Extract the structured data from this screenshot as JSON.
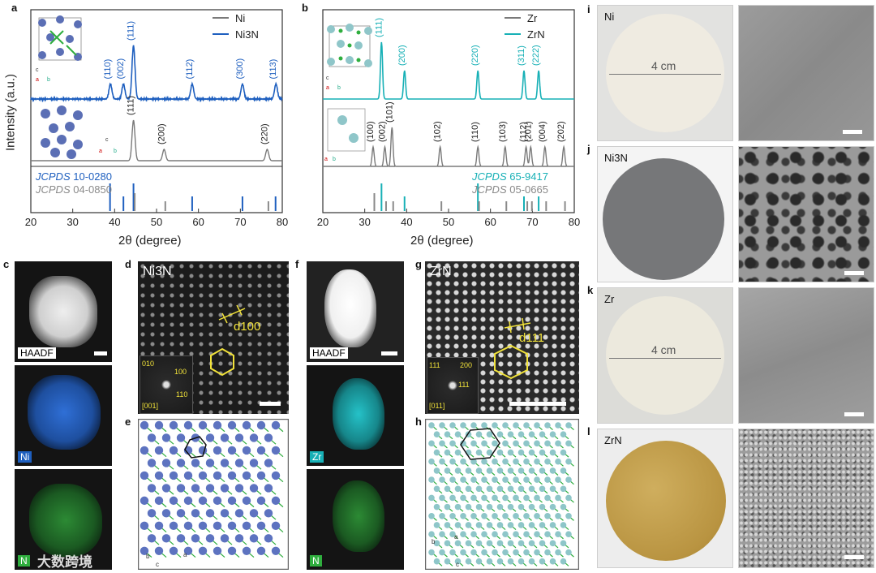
{
  "panels": {
    "a": "a",
    "b": "b",
    "c": "c",
    "d": "d",
    "e": "e",
    "f": "f",
    "g": "g",
    "h": "h",
    "i": "i",
    "j": "j",
    "k": "k",
    "l": "l"
  },
  "axis": {
    "ylabel": "Intensity (a.u.)",
    "xlabel": "2θ (degree)",
    "xticks": [
      "20",
      "30",
      "40",
      "50",
      "60",
      "70",
      "80"
    ]
  },
  "chart_data": [
    {
      "type": "line",
      "panel": "a",
      "xlabel": "2θ (degree)",
      "ylabel": "Intensity (a.u.)",
      "xlim": [
        20,
        80
      ],
      "legend": [
        "Ni",
        "Ni3N"
      ],
      "legend_placement": "top-right",
      "series": [
        {
          "name": "Ni3N",
          "color": "#1e5fbf",
          "peaks": [
            {
              "x": 39.0,
              "label": "(110)"
            },
            {
              "x": 42.1,
              "label": "(002)"
            },
            {
              "x": 44.5,
              "label": "(111)"
            },
            {
              "x": 58.5,
              "label": "(112)"
            },
            {
              "x": 70.5,
              "label": "(300)"
            },
            {
              "x": 78.5,
              "label": "(113)"
            }
          ]
        },
        {
          "name": "Ni",
          "color": "#7a7a7a",
          "peaks": [
            {
              "x": 44.5,
              "label": "(111)"
            },
            {
              "x": 51.8,
              "label": "(200)"
            },
            {
              "x": 76.4,
              "label": "(220)"
            }
          ]
        }
      ],
      "reference": [
        {
          "name": "JCPDS",
          "code": "10-0280",
          "color": "#1e5fbf",
          "lines": [
            38.9,
            42.1,
            44.5,
            58.5,
            70.5,
            78.4
          ]
        },
        {
          "name": "JCPDS",
          "code": "04-0850",
          "color": "#8a8a8a",
          "lines": [
            44.5,
            51.8,
            76.4
          ]
        }
      ]
    },
    {
      "type": "line",
      "panel": "b",
      "xlabel": "2θ (degree)",
      "xlim": [
        20,
        80
      ],
      "legend": [
        "Zr",
        "ZrN"
      ],
      "legend_placement": "top-right",
      "series": [
        {
          "name": "ZrN",
          "color": "#17b0b6",
          "peaks": [
            {
              "x": 34.0,
              "label": "(111)"
            },
            {
              "x": 39.5,
              "label": "(200)"
            },
            {
              "x": 57.0,
              "label": "(220)"
            },
            {
              "x": 68.0,
              "label": "(311)"
            },
            {
              "x": 71.5,
              "label": "(222)"
            }
          ]
        },
        {
          "name": "Zr",
          "color": "#7a7a7a",
          "peaks": [
            {
              "x": 32.0,
              "label": "(100)"
            },
            {
              "x": 34.8,
              "label": "(002)"
            },
            {
              "x": 36.5,
              "label": "(101)"
            },
            {
              "x": 48.0,
              "label": "(102)"
            },
            {
              "x": 57.0,
              "label": "(110)"
            },
            {
              "x": 63.5,
              "label": "(103)"
            },
            {
              "x": 68.5,
              "label": "(112)"
            },
            {
              "x": 69.6,
              "label": "(201)"
            },
            {
              "x": 73.0,
              "label": "(004)"
            },
            {
              "x": 77.5,
              "label": "(202)"
            }
          ]
        }
      ],
      "reference": [
        {
          "name": "JCPDS",
          "code": "65-9417",
          "color": "#17b0b6",
          "lines": [
            34.0,
            39.5,
            57.0,
            68.0,
            71.5
          ]
        },
        {
          "name": "JCPDS",
          "code": "05-0665",
          "color": "#8a8a8a",
          "lines": [
            32.0,
            34.8,
            36.5,
            48.0,
            57.0,
            63.5,
            68.5,
            69.6,
            73.0,
            77.5
          ]
        }
      ]
    }
  ],
  "tem": {
    "haadf": "HAADF",
    "ni": "Ni",
    "zr": "Zr",
    "n": "N",
    "ni3n_title": "Ni3N",
    "zrn_title": "ZrN",
    "d100": "d100",
    "d111": "d111",
    "fft_ni": {
      "a": "010",
      "b": "100",
      "c": "110",
      "zone": "[001]"
    },
    "fft_zr": {
      "a": "111",
      "b": "200",
      "c": "111",
      "zone": "[011]"
    }
  },
  "photos": {
    "ni": "Ni",
    "ni3n": "Ni3N",
    "zr": "Zr",
    "zrn": "ZrN",
    "size": "4 cm"
  },
  "axes_labels": {
    "a": "a",
    "b": "b",
    "c": "c"
  },
  "watermark": "大数跨境"
}
